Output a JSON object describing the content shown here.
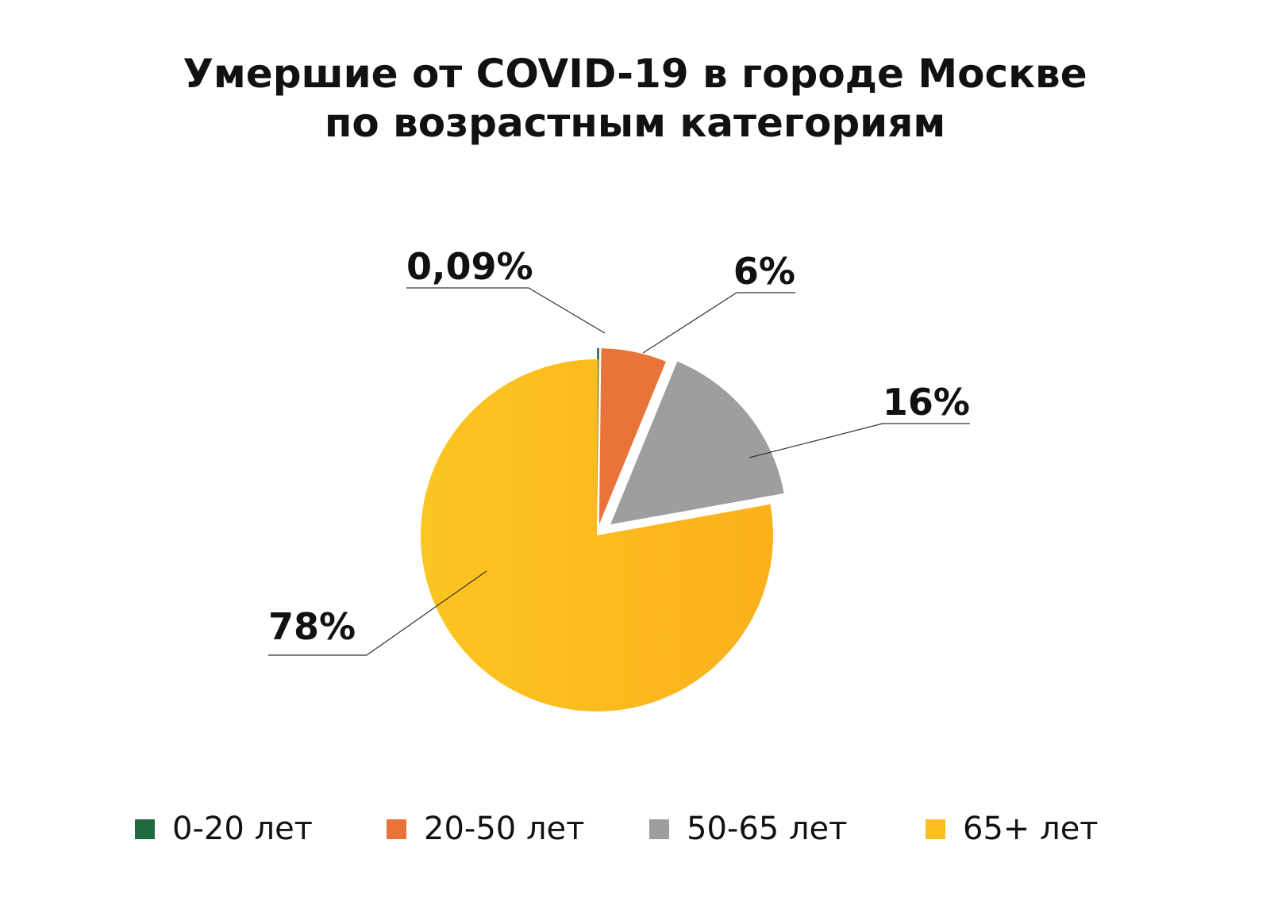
{
  "title": {
    "line1": "Умершие от COVID-19 в городе Москве",
    "line2": "по возрастным категориям"
  },
  "chart_data": {
    "type": "pie",
    "title": "Умершие от COVID-19 в городе Москве по возрастным категориям",
    "categories": [
      "0-20 лет",
      "20-50 лет",
      "50-65 лет",
      "65+ лет"
    ],
    "values": [
      0.09,
      6,
      16,
      78
    ],
    "labels": [
      "0,09%",
      "6%",
      "16%",
      "78%"
    ],
    "colors": [
      "#1f6b3f",
      "#e8743a",
      "#9e9e9e",
      "#fbbd1f"
    ],
    "exploded": true,
    "legend_position": "bottom"
  }
}
